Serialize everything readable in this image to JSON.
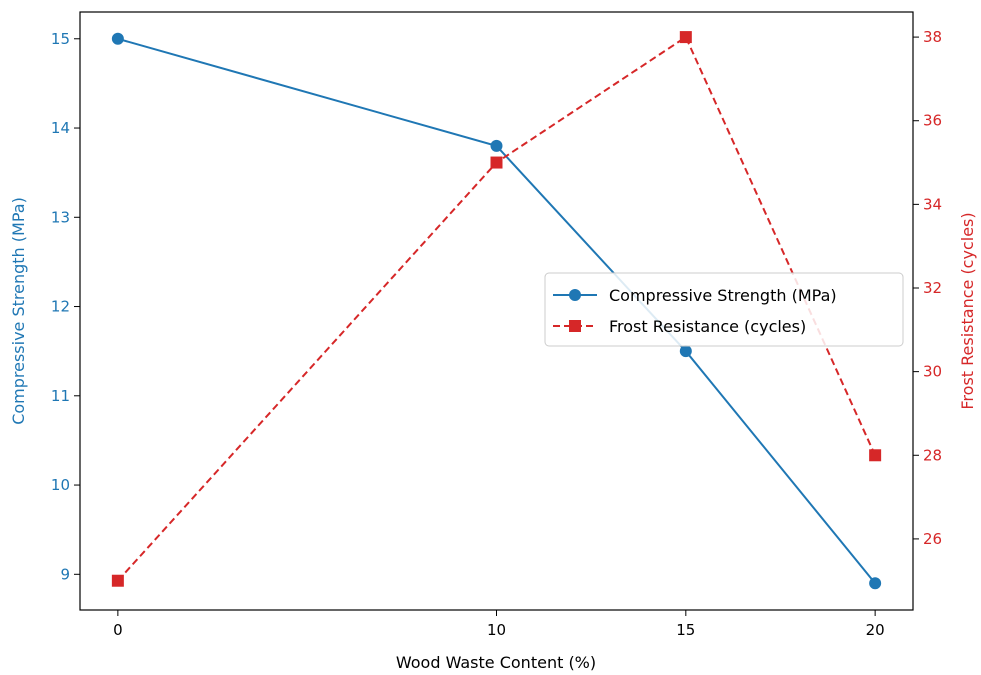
{
  "chart_data": {
    "type": "line",
    "x": [
      0,
      10,
      15,
      20
    ],
    "xlabel": "Wood Waste Content (%)",
    "x_ticks": [
      "0",
      "10",
      "15",
      "20"
    ],
    "xlim": [
      -1,
      21
    ],
    "series": [
      {
        "name": "Compressive Strength (MPa)",
        "axis": "left",
        "values": [
          15.0,
          13.8,
          11.5,
          8.9
        ],
        "color": "#1f77b4",
        "linestyle": "solid",
        "marker": "circle"
      },
      {
        "name": "Frost Resistance (cycles)",
        "axis": "right",
        "values": [
          25,
          35,
          38,
          28
        ],
        "color": "#d62728",
        "linestyle": "dashed",
        "marker": "square"
      }
    ],
    "y_left": {
      "label": "Compressive Strength (MPa)",
      "ticks": [
        "9",
        "10",
        "11",
        "12",
        "13",
        "14",
        "15"
      ],
      "ylim": [
        8.6,
        15.3
      ],
      "color": "#1f77b4"
    },
    "y_right": {
      "label": "Frost Resistance (cycles)",
      "ticks": [
        "26",
        "28",
        "30",
        "32",
        "34",
        "36",
        "38"
      ],
      "ylim": [
        24.3,
        38.6
      ],
      "color": "#d62728"
    },
    "legend_position": "center-right",
    "grid": false
  }
}
